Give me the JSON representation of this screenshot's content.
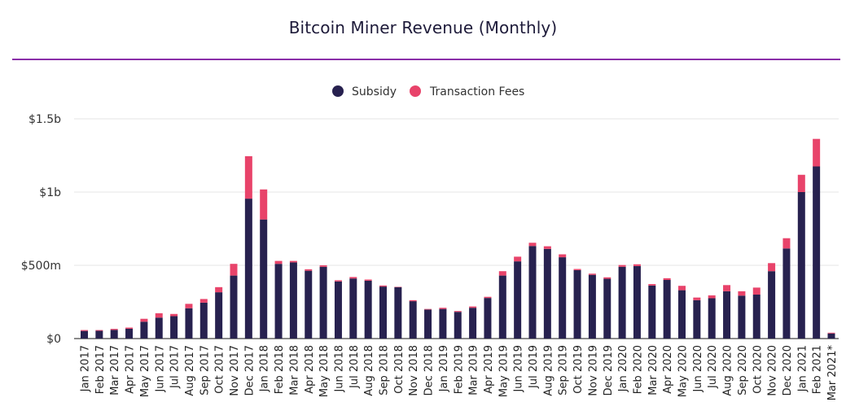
{
  "title": "Bitcoin Miner Revenue (Monthly)",
  "colors": {
    "subsidy": "#27214f",
    "fees": "#e8436a",
    "rule": "#8a2ea8",
    "grid": "#e6e6e6",
    "axis": "#444444"
  },
  "chart_data": {
    "type": "bar",
    "stacked": true,
    "title": "Bitcoin Miner Revenue (Monthly)",
    "xlabel": "",
    "ylabel": "",
    "ylim": [
      0,
      1500000000
    ],
    "yticks": [
      {
        "value": 0,
        "label": "$0"
      },
      {
        "value": 500000000,
        "label": "$500m"
      },
      {
        "value": 1000000000,
        "label": "$1b"
      },
      {
        "value": 1500000000,
        "label": "$1.5b"
      }
    ],
    "grid": true,
    "legend_position": "top-center",
    "categories": [
      "Jan 2017",
      "Feb 2017",
      "Mar 2017",
      "Apr 2017",
      "May 2017",
      "Jun 2017",
      "Jul 2017",
      "Aug 2017",
      "Sep 2017",
      "Oct 2017",
      "Nov 2017",
      "Dec 2017",
      "Jan 2018",
      "Feb 2018",
      "Mar 2018",
      "Apr 2018",
      "May 2018",
      "Jun 2018",
      "Jul 2018",
      "Aug 2018",
      "Sep 2018",
      "Oct 2018",
      "Nov 2018",
      "Dec 2018",
      "Jan 2019",
      "Feb 2019",
      "Mar 2019",
      "Apr 2019",
      "May 2019",
      "Jun 2019",
      "Jul 2019",
      "Aug 2019",
      "Sep 2019",
      "Oct 2019",
      "Nov 2019",
      "Dec 2019",
      "Jan 2020",
      "Feb 2020",
      "Mar 2020",
      "Apr 2020",
      "May 2020",
      "Jun 2020",
      "Jul 2020",
      "Aug 2020",
      "Sep 2020",
      "Oct 2020",
      "Nov 2020",
      "Dec 2020",
      "Jan 2021",
      "Feb 2021",
      "Mar 2021*"
    ],
    "series": [
      {
        "name": "Subsidy",
        "values": [
          52000000,
          53000000,
          59000000,
          67000000,
          115000000,
          143000000,
          153000000,
          207000000,
          245000000,
          316000000,
          430000000,
          955000000,
          813000000,
          510000000,
          520000000,
          463000000,
          490000000,
          390000000,
          410000000,
          395000000,
          355000000,
          350000000,
          255000000,
          198000000,
          202000000,
          182000000,
          210000000,
          277000000,
          430000000,
          527000000,
          632000000,
          612000000,
          555000000,
          467000000,
          435000000,
          408000000,
          490000000,
          495000000,
          362000000,
          400000000,
          330000000,
          262000000,
          275000000,
          323000000,
          293000000,
          300000000,
          460000000,
          615000000,
          1000000000,
          1175000000,
          35000000
        ]
      },
      {
        "name": "Transaction Fees",
        "values": [
          6000000,
          5000000,
          7000000,
          8000000,
          20000000,
          30000000,
          15000000,
          30000000,
          25000000,
          35000000,
          80000000,
          290000000,
          205000000,
          20000000,
          10000000,
          10000000,
          10000000,
          8000000,
          10000000,
          8000000,
          7000000,
          3000000,
          7000000,
          4000000,
          8000000,
          6000000,
          9000000,
          8000000,
          30000000,
          32000000,
          22000000,
          18000000,
          20000000,
          8000000,
          8000000,
          10000000,
          12000000,
          12000000,
          10000000,
          12000000,
          30000000,
          18000000,
          20000000,
          42000000,
          30000000,
          48000000,
          55000000,
          70000000,
          118000000,
          188000000,
          5000000
        ]
      }
    ]
  }
}
